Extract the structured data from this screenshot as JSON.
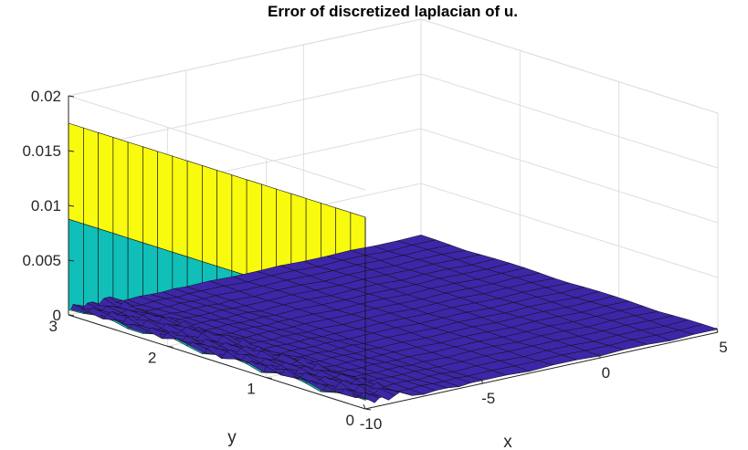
{
  "chart_data": {
    "type": "surface",
    "title": "Error of discretized laplacian of u.",
    "xlabel": "x",
    "ylabel": "y",
    "zlabel": "",
    "xlim": [
      -10,
      5
    ],
    "ylim": [
      0,
      3
    ],
    "zlim": [
      0,
      0.02
    ],
    "x_ticks": [
      "-10",
      "-5",
      "0",
      "5"
    ],
    "y_ticks": [
      "0",
      "1",
      "2",
      "3"
    ],
    "z_ticks": [
      "0",
      "0.005",
      "0.01",
      "0.015",
      "0.02"
    ],
    "grid": true,
    "colormap": [
      "#3e26a8",
      "#3e26a8",
      "#0fbfb8",
      "#f9fb0e"
    ],
    "surface": {
      "x_grid": [
        -10,
        -9.9,
        -9.8,
        -9.6,
        -9.4,
        -9.2,
        -9,
        -8.75,
        -8.5,
        -8.25,
        -8,
        -7.5,
        -7,
        -6.5,
        -6,
        -5.5,
        -5,
        -4,
        -3,
        -2,
        -1,
        0,
        1,
        2,
        3,
        4,
        5
      ],
      "y_grid": [
        0,
        0.15,
        0.3,
        0.45,
        0.6,
        0.75,
        0.9,
        1.05,
        1.2,
        1.35,
        1.5,
        1.65,
        1.8,
        1.95,
        2.1,
        2.25,
        2.4,
        2.55,
        2.7,
        2.85,
        3
      ],
      "boundary_error_at_x_min": 0.0175,
      "interior_error": 0.0003
    }
  }
}
